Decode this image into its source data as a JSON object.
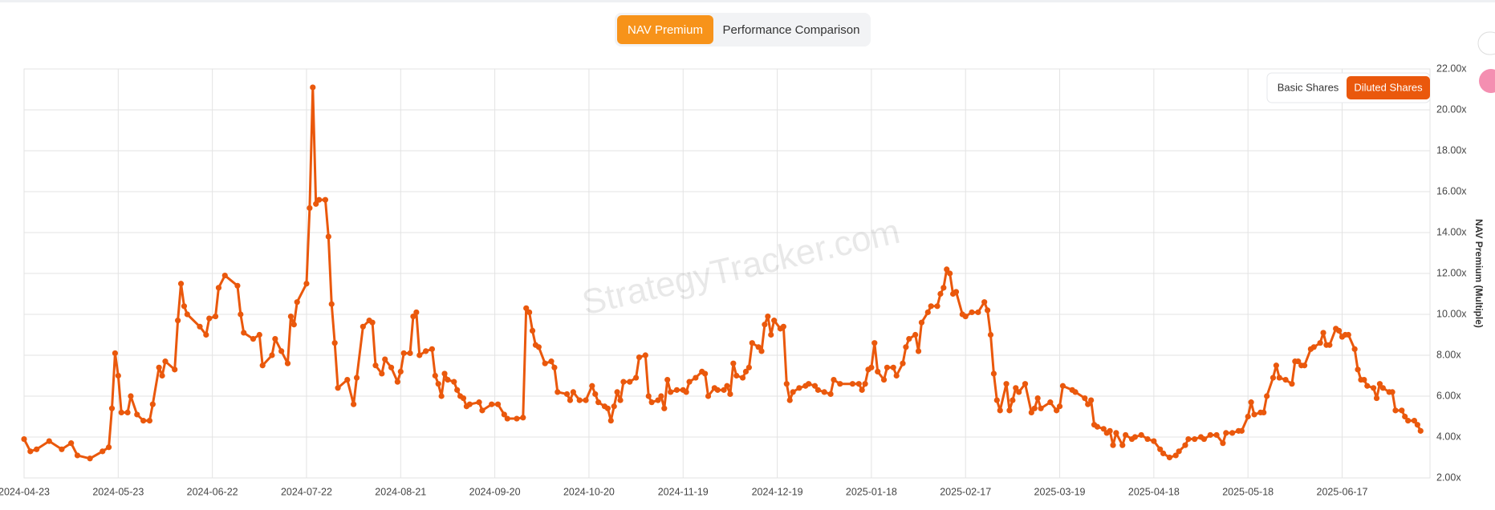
{
  "tabs": [
    "NAV Premium",
    "Performance Comparison"
  ],
  "share_toggle": [
    "Basic Shares",
    "Diluted Shares"
  ],
  "watermark": "StrategyTracker.com",
  "chart_data": {
    "type": "line",
    "y_label": "NAV Premium (Multiple)",
    "color": "#ea580c",
    "grid": true,
    "xlim": [
      "2024-04-23",
      "2025-07-15"
    ],
    "xticks": [
      "2024-04-23",
      "2024-05-23",
      "2024-06-22",
      "2024-07-22",
      "2024-08-21",
      "2024-09-20",
      "2024-10-20",
      "2024-11-19",
      "2024-12-19",
      "2025-01-18",
      "2025-02-17",
      "2025-03-19",
      "2025-04-18",
      "2025-05-18",
      "2025-06-17"
    ],
    "ylim": [
      2,
      22
    ],
    "yticks": [
      {
        "value": 2,
        "label": "2.00x"
      },
      {
        "value": 4,
        "label": "4.00x"
      },
      {
        "value": 6,
        "label": "6.00x"
      },
      {
        "value": 8,
        "label": "8.00x"
      },
      {
        "value": 10,
        "label": "10.00x"
      },
      {
        "value": 12,
        "label": "12.00x"
      },
      {
        "value": 14,
        "label": "14.00x"
      },
      {
        "value": 16,
        "label": "16.00x"
      },
      {
        "value": 18,
        "label": "18.00x"
      },
      {
        "value": 20,
        "label": "20.00x"
      },
      {
        "value": 22,
        "label": "22.00x"
      }
    ],
    "x": [
      "2024-04-23",
      "2024-04-25",
      "2024-04-27",
      "2024-05-01",
      "2024-05-05",
      "2024-05-08",
      "2024-05-10",
      "2024-05-14",
      "2024-05-18",
      "2024-05-20",
      "2024-05-21",
      "2024-05-22",
      "2024-05-23",
      "2024-05-24",
      "2024-05-26",
      "2024-05-27",
      "2024-05-29",
      "2024-05-31",
      "2024-06-02",
      "2024-06-03",
      "2024-06-05",
      "2024-06-06",
      "2024-06-07",
      "2024-06-10",
      "2024-06-11",
      "2024-06-12",
      "2024-06-13",
      "2024-06-14",
      "2024-06-18",
      "2024-06-20",
      "2024-06-21",
      "2024-06-23",
      "2024-06-24",
      "2024-06-26",
      "2024-06-30",
      "2024-07-01",
      "2024-07-02",
      "2024-07-05",
      "2024-07-07",
      "2024-07-08",
      "2024-07-11",
      "2024-07-12",
      "2024-07-14",
      "2024-07-16",
      "2024-07-17",
      "2024-07-18",
      "2024-07-19",
      "2024-07-22",
      "2024-07-23",
      "2024-07-24",
      "2024-07-25",
      "2024-07-26",
      "2024-07-28",
      "2024-07-29",
      "2024-07-30",
      "2024-07-31",
      "2024-08-01",
      "2024-08-04",
      "2024-08-06",
      "2024-08-07",
      "2024-08-09",
      "2024-08-11",
      "2024-08-12",
      "2024-08-13",
      "2024-08-15",
      "2024-08-16",
      "2024-08-18",
      "2024-08-20",
      "2024-08-21",
      "2024-08-22",
      "2024-08-24",
      "2024-08-25",
      "2024-08-26",
      "2024-08-27",
      "2024-08-29",
      "2024-08-31",
      "2024-09-01",
      "2024-09-02",
      "2024-09-03",
      "2024-09-04",
      "2024-09-05",
      "2024-09-07",
      "2024-09-08",
      "2024-09-09",
      "2024-09-10",
      "2024-09-11",
      "2024-09-12",
      "2024-09-15",
      "2024-09-16",
      "2024-09-19",
      "2024-09-21",
      "2024-09-23",
      "2024-09-24",
      "2024-09-27",
      "2024-09-29",
      "2024-09-30",
      "2024-10-01",
      "2024-10-02",
      "2024-10-03",
      "2024-10-04",
      "2024-10-06",
      "2024-10-08",
      "2024-10-09",
      "2024-10-10",
      "2024-10-13",
      "2024-10-14",
      "2024-10-15",
      "2024-10-17",
      "2024-10-19",
      "2024-10-21",
      "2024-10-22",
      "2024-10-23",
      "2024-10-25",
      "2024-10-26",
      "2024-10-27",
      "2024-10-28",
      "2024-10-29",
      "2024-10-30",
      "2024-10-31",
      "2024-11-02",
      "2024-11-04",
      "2024-11-05",
      "2024-11-07",
      "2024-11-08",
      "2024-11-09",
      "2024-11-11",
      "2024-11-12",
      "2024-11-13",
      "2024-11-14",
      "2024-11-15",
      "2024-11-17",
      "2024-11-19",
      "2024-11-20",
      "2024-11-21",
      "2024-11-23",
      "2024-11-25",
      "2024-11-26",
      "2024-11-27",
      "2024-11-29",
      "2024-11-30",
      "2024-12-02",
      "2024-12-03",
      "2024-12-04",
      "2024-12-05",
      "2024-12-06",
      "2024-12-08",
      "2024-12-09",
      "2024-12-10",
      "2024-12-11",
      "2024-12-13",
      "2024-12-14",
      "2024-12-15",
      "2024-12-16",
      "2024-12-17",
      "2024-12-18",
      "2024-12-20",
      "2024-12-21",
      "2024-12-22",
      "2024-12-23",
      "2024-12-24",
      "2024-12-26",
      "2024-12-28",
      "2024-12-29",
      "2024-12-31",
      "2025-01-01",
      "2025-01-03",
      "2025-01-05",
      "2025-01-06",
      "2025-01-08",
      "2025-01-12",
      "2025-01-14",
      "2025-01-15",
      "2025-01-16",
      "2025-01-17",
      "2025-01-18",
      "2025-01-19",
      "2025-01-20",
      "2025-01-22",
      "2025-01-23",
      "2025-01-25",
      "2025-01-26",
      "2025-01-28",
      "2025-01-29",
      "2025-01-30",
      "2025-02-01",
      "2025-02-02",
      "2025-02-03",
      "2025-02-05",
      "2025-02-06",
      "2025-02-08",
      "2025-02-09",
      "2025-02-10",
      "2025-02-11",
      "2025-02-12",
      "2025-02-13",
      "2025-02-14",
      "2025-02-16",
      "2025-02-17",
      "2025-02-19",
      "2025-02-21",
      "2025-02-23",
      "2025-02-24",
      "2025-02-25",
      "2025-02-26",
      "2025-02-27",
      "2025-02-28",
      "2025-03-02",
      "2025-03-03",
      "2025-03-04",
      "2025-03-05",
      "2025-03-06",
      "2025-03-08",
      "2025-03-10",
      "2025-03-11",
      "2025-03-12",
      "2025-03-13",
      "2025-03-16",
      "2025-03-18",
      "2025-03-19",
      "2025-03-20",
      "2025-03-23",
      "2025-03-24",
      "2025-03-27",
      "2025-03-28",
      "2025-03-29",
      "2025-03-30",
      "2025-03-31",
      "2025-04-02",
      "2025-04-03",
      "2025-04-04",
      "2025-04-05",
      "2025-04-06",
      "2025-04-08",
      "2025-04-09",
      "2025-04-11",
      "2025-04-12",
      "2025-04-14",
      "2025-04-16",
      "2025-04-18",
      "2025-04-20",
      "2025-04-21",
      "2025-04-23",
      "2025-04-25",
      "2025-04-26",
      "2025-04-28",
      "2025-04-29",
      "2025-05-01",
      "2025-05-03",
      "2025-05-04",
      "2025-05-06",
      "2025-05-08",
      "2025-05-10",
      "2025-05-11",
      "2025-05-13",
      "2025-05-15",
      "2025-05-16",
      "2025-05-18",
      "2025-05-19",
      "2025-05-20",
      "2025-05-22",
      "2025-05-23",
      "2025-05-24",
      "2025-05-26",
      "2025-05-27",
      "2025-05-28",
      "2025-05-30",
      "2025-06-01",
      "2025-06-02",
      "2025-06-03",
      "2025-06-04",
      "2025-06-05",
      "2025-06-07",
      "2025-06-08",
      "2025-06-10",
      "2025-06-11",
      "2025-06-12",
      "2025-06-13",
      "2025-06-15",
      "2025-06-16",
      "2025-06-17",
      "2025-06-18",
      "2025-06-19",
      "2025-06-21",
      "2025-06-22",
      "2025-06-23",
      "2025-06-24",
      "2025-06-25",
      "2025-06-27",
      "2025-06-28",
      "2025-06-29",
      "2025-06-30",
      "2025-07-02",
      "2025-07-03",
      "2025-07-04",
      "2025-07-06",
      "2025-07-07",
      "2025-07-08",
      "2025-07-10",
      "2025-07-11",
      "2025-07-12"
    ],
    "values": [
      3.9,
      3.3,
      3.4,
      3.8,
      3.4,
      3.7,
      3.1,
      2.95,
      3.3,
      3.5,
      5.4,
      8.1,
      7.0,
      5.2,
      5.2,
      6.0,
      5.1,
      4.8,
      4.8,
      5.6,
      7.4,
      7.0,
      7.7,
      7.3,
      9.7,
      11.5,
      10.4,
      10.0,
      9.4,
      9.0,
      9.8,
      9.9,
      11.3,
      11.9,
      11.4,
      10.0,
      9.1,
      8.8,
      9.0,
      7.5,
      8.0,
      8.8,
      8.2,
      7.6,
      9.9,
      9.5,
      10.6,
      11.5,
      15.2,
      21.1,
      15.4,
      15.6,
      15.6,
      13.8,
      10.5,
      8.6,
      6.4,
      6.8,
      5.6,
      6.9,
      9.4,
      9.7,
      9.6,
      7.5,
      7.1,
      7.8,
      7.4,
      6.7,
      7.2,
      8.1,
      8.1,
      9.9,
      10.1,
      8.0,
      8.2,
      8.3,
      7.0,
      6.6,
      6.0,
      7.1,
      6.8,
      6.7,
      6.3,
      6.0,
      5.9,
      5.5,
      5.6,
      5.7,
      5.3,
      5.6,
      5.6,
      5.1,
      4.9,
      4.9,
      4.95,
      10.3,
      10.1,
      9.2,
      8.5,
      8.4,
      7.6,
      7.7,
      7.4,
      6.2,
      6.1,
      5.8,
      6.2,
      5.8,
      5.8,
      6.5,
      6.1,
      5.7,
      5.5,
      5.4,
      4.8,
      5.5,
      6.2,
      5.8,
      6.7,
      6.7,
      6.9,
      7.9,
      8.0,
      6.0,
      5.7,
      5.8,
      6.0,
      5.4,
      6.8,
      6.2,
      6.3,
      6.3,
      6.2,
      6.7,
      6.9,
      7.2,
      7.1,
      6.0,
      6.4,
      6.3,
      6.3,
      6.5,
      6.1,
      7.6,
      7.0,
      6.9,
      7.2,
      7.4,
      8.6,
      8.4,
      8.2,
      9.5,
      9.9,
      9.0,
      9.7,
      9.3,
      9.4,
      6.6,
      5.8,
      6.2,
      6.4,
      6.5,
      6.6,
      6.5,
      6.3,
      6.2,
      6.1,
      6.8,
      6.6,
      6.6,
      6.6,
      6.3,
      6.6,
      7.3,
      7.4,
      8.6,
      7.2,
      6.8,
      7.4,
      7.4,
      7.0,
      7.6,
      8.4,
      8.8,
      9.0,
      8.2,
      9.6,
      10.1,
      10.4,
      10.4,
      11.0,
      11.3,
      12.2,
      12.0,
      11.0,
      11.1,
      10.0,
      9.9,
      10.1,
      10.1,
      10.6,
      10.2,
      9.0,
      7.1,
      5.8,
      5.3,
      6.6,
      5.3,
      5.8,
      6.4,
      6.2,
      6.6,
      5.2,
      5.4,
      5.9,
      5.4,
      5.7,
      5.3,
      5.5,
      6.5,
      6.3,
      6.2,
      5.9,
      5.6,
      5.8,
      4.6,
      4.5,
      4.4,
      4.2,
      4.3,
      3.6,
      4.2,
      3.6,
      4.1,
      3.9,
      4.0,
      4.1,
      3.9,
      3.8,
      3.4,
      3.2,
      3.0,
      3.1,
      3.3,
      3.6,
      3.9,
      3.9,
      4.0,
      3.9,
      4.1,
      4.1,
      3.7,
      4.2,
      4.2,
      4.3,
      4.3,
      5.0,
      5.7,
      5.1,
      5.2,
      5.2,
      6.0,
      6.9,
      7.5,
      6.9,
      6.8,
      6.6,
      7.7,
      7.7,
      7.5,
      7.5,
      8.3,
      8.4,
      8.6,
      9.1,
      8.5,
      8.5,
      9.3,
      9.2,
      8.9,
      9.0,
      9.0,
      8.3,
      7.3,
      6.8,
      6.8,
      6.5,
      6.4,
      5.9,
      6.6,
      6.4,
      6.2,
      6.2,
      5.3,
      5.3,
      5.0,
      4.8,
      4.8,
      4.6,
      4.3
    ]
  }
}
